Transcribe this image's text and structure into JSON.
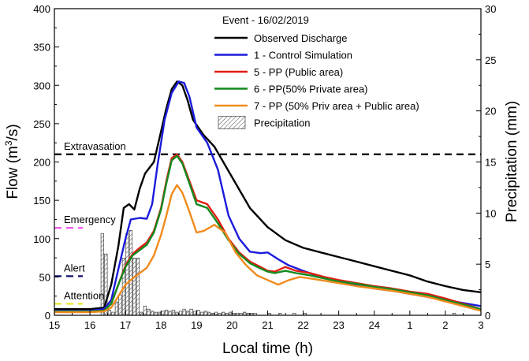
{
  "chart_data": {
    "type": "line",
    "title": "Event - 16/02/2019",
    "xlabel": "Local time (h)",
    "ylabel_left": "Flow (m³/s)",
    "ylabel_left_main": "Flow (m",
    "ylabel_left_sup": "3",
    "ylabel_left_tail": "/s)",
    "ylabel_right": "Precipitation (mm)",
    "xlim": [
      0,
      12
    ],
    "ylim_left": [
      0,
      400
    ],
    "ylim_right": [
      0,
      30
    ],
    "x_ticks": [
      "15",
      "16",
      "17",
      "18",
      "19",
      "20",
      "21",
      "22",
      "23",
      "24",
      "1",
      "2",
      "3"
    ],
    "y_left_ticks": [
      0,
      50,
      100,
      150,
      200,
      250,
      300,
      350,
      400
    ],
    "y_right_ticks": [
      0,
      5,
      10,
      15,
      20,
      25,
      30
    ],
    "series": [
      {
        "name": "Observed Discharge",
        "color": "#000000",
        "x": [
          0,
          1,
          1.4,
          1.6,
          1.8,
          1.95,
          2.1,
          2.25,
          2.4,
          2.55,
          2.8,
          3,
          3.15,
          3.3,
          3.45,
          3.6,
          3.75,
          3.9,
          4.2,
          4.5,
          5,
          5.5,
          6,
          6.5,
          7,
          7.5,
          8,
          8.5,
          9,
          9.5,
          10,
          10.5,
          11,
          11.5,
          12
        ],
        "values": [
          8,
          8,
          10,
          40,
          90,
          140,
          145,
          138,
          165,
          185,
          200,
          240,
          270,
          295,
          305,
          300,
          280,
          255,
          235,
          220,
          180,
          140,
          115,
          98,
          88,
          82,
          76,
          70,
          64,
          58,
          52,
          44,
          38,
          33,
          30
        ]
      },
      {
        "name": "1 - Control Simulation",
        "color": "#1b1bdc",
        "x": [
          0,
          1,
          1.4,
          1.6,
          1.8,
          2,
          2.15,
          2.4,
          2.6,
          2.75,
          2.9,
          3.1,
          3.3,
          3.5,
          3.65,
          3.8,
          4,
          4.3,
          4.6,
          4.9,
          5.2,
          5.5,
          5.8,
          6,
          6.3,
          6.6,
          7,
          7.5,
          8,
          8.5,
          9,
          9.5,
          10,
          10.5,
          11,
          11.5,
          12
        ],
        "values": [
          6,
          6,
          8,
          20,
          60,
          100,
          125,
          127,
          126,
          145,
          195,
          255,
          290,
          305,
          303,
          285,
          245,
          225,
          190,
          130,
          100,
          83,
          81,
          82,
          73,
          65,
          58,
          50,
          44,
          39,
          35,
          32,
          28,
          24,
          20,
          16,
          12
        ]
      },
      {
        "name": "5 - PP (Public area)",
        "color": "#e11d12",
        "x": [
          0,
          1,
          1.4,
          1.6,
          1.8,
          2,
          2.2,
          2.4,
          2.6,
          2.8,
          3,
          3.15,
          3.3,
          3.45,
          3.6,
          3.8,
          4,
          4.3,
          4.6,
          4.9,
          5.2,
          5.5,
          5.8,
          6,
          6.2,
          6.5,
          6.8,
          7.2,
          7.6,
          8,
          8.5,
          9,
          9.5,
          10,
          10.5,
          11,
          11.5,
          12
        ],
        "values": [
          5,
          5,
          6,
          15,
          40,
          65,
          80,
          88,
          95,
          110,
          140,
          175,
          205,
          210,
          200,
          175,
          150,
          145,
          125,
          100,
          82,
          70,
          63,
          58,
          57,
          63,
          58,
          55,
          50,
          46,
          42,
          38,
          35,
          31,
          28,
          22,
          15,
          8
        ]
      },
      {
        "name": "6 - PP(50% Private area)",
        "color": "#148a1f",
        "x": [
          0,
          1,
          1.4,
          1.6,
          1.8,
          2,
          2.2,
          2.4,
          2.6,
          2.8,
          3,
          3.15,
          3.3,
          3.45,
          3.6,
          3.8,
          4,
          4.3,
          4.6,
          4.9,
          5.2,
          5.5,
          5.8,
          6,
          6.2,
          6.5,
          6.8,
          7.2,
          7.6,
          8,
          8.5,
          9,
          9.5,
          10,
          10.5,
          11,
          11.5,
          12
        ],
        "values": [
          5,
          5,
          6,
          15,
          40,
          63,
          78,
          85,
          92,
          108,
          138,
          172,
          202,
          208,
          198,
          172,
          145,
          140,
          120,
          98,
          80,
          68,
          61,
          57,
          55,
          58,
          55,
          52,
          48,
          44,
          41,
          37,
          34,
          30,
          26,
          20,
          14,
          8
        ]
      },
      {
        "name": "7 - PP (50% Priv area + Public area)",
        "color": "#f08a1c",
        "x": [
          0,
          1,
          1.4,
          1.6,
          1.8,
          2,
          2.2,
          2.4,
          2.6,
          2.8,
          3,
          3.15,
          3.3,
          3.45,
          3.6,
          3.8,
          4,
          4.2,
          4.5,
          4.8,
          5.1,
          5.4,
          5.7,
          6,
          6.3,
          6.6,
          6.9,
          7.2,
          7.6,
          8,
          8.5,
          9,
          9.5,
          10,
          10.5,
          11,
          11.5,
          12
        ],
        "values": [
          4,
          4,
          5,
          10,
          25,
          40,
          48,
          55,
          62,
          78,
          105,
          130,
          158,
          170,
          160,
          135,
          108,
          110,
          118,
          108,
          82,
          65,
          52,
          46,
          40,
          46,
          50,
          48,
          45,
          42,
          38,
          35,
          32,
          28,
          24,
          18,
          12,
          6
        ]
      }
    ],
    "precipitation": {
      "name": "Precipitation",
      "bar_width": 0.1,
      "x": [
        1.35,
        1.45,
        1.55,
        1.65,
        1.75,
        1.85,
        1.95,
        2.05,
        2.15,
        2.25,
        2.35,
        2.45,
        2.55,
        2.65,
        2.75,
        2.85,
        2.95,
        3.05,
        3.15,
        3.25,
        3.35,
        3.45,
        3.55,
        3.65,
        3.75,
        3.85,
        3.95,
        4.05,
        4.15,
        4.25,
        4.35,
        4.45,
        4.55,
        4.65,
        4.75,
        4.85,
        4.95,
        5.05,
        5.15,
        5.25,
        5.35,
        5.45,
        5.55,
        5.65,
        6.05,
        6.35,
        6.75,
        7.05,
        11.25
      ],
      "values": [
        8,
        6,
        0.5,
        0.3,
        1.3,
        2.0,
        5.6,
        8.0,
        8.3,
        5.6,
        5.6,
        0.3,
        0.9,
        0.6,
        0.4,
        0.3,
        0.3,
        0.4,
        0.5,
        0.4,
        0.5,
        0.3,
        0.4,
        0.6,
        0.4,
        0.6,
        0.4,
        0.5,
        0.3,
        0.4,
        0.3,
        0.2,
        0.3,
        0.2,
        0.3,
        0.2,
        0.3,
        0.2,
        0.2,
        0.2,
        0.3,
        0.2,
        0.2,
        0.2,
        0.2,
        0.2,
        0.2,
        0.2,
        0.2
      ]
    },
    "thresholds": [
      {
        "label": "Extravasation",
        "value": 210,
        "color": "#000000",
        "x_end": 12
      },
      {
        "label": "Emergency",
        "value": 114,
        "color": "#ee5bee",
        "x_end": 0.8
      },
      {
        "label": "Alert",
        "value": 51,
        "color": "#101070",
        "x_end": 0.8
      },
      {
        "label": "Attention",
        "value": 15,
        "color": "#e6e61e",
        "x_end": 0.8
      }
    ],
    "legend_position": "top-right"
  }
}
